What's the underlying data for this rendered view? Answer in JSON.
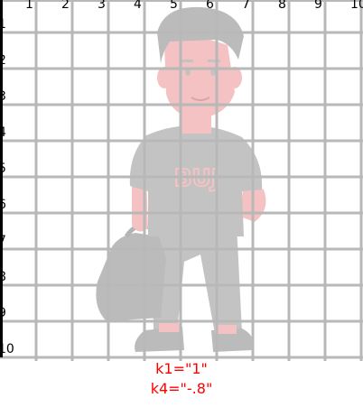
{
  "grid": {
    "column_labels": [
      "1",
      "2",
      "3",
      "4",
      "5",
      "6",
      "7",
      "8",
      "9",
      "10"
    ],
    "row_labels": [
      "1",
      "2",
      "3",
      "4",
      "5",
      "6",
      "7",
      "8",
      "9",
      "10"
    ],
    "line_color": "#b8b8b8",
    "axis_color": "#000000"
  },
  "figure": {
    "name": "cartoon-person-figure",
    "skin_color": "#f2b2b2",
    "clothing_color": "#b3b3b3",
    "shirt_logo_text": "BUJ",
    "shirt_logo_color": "#f2b2b2"
  },
  "params": {
    "k1": "k1=\"1\"",
    "k4": "k4=\"-.8\"",
    "color": "#ff0000"
  }
}
